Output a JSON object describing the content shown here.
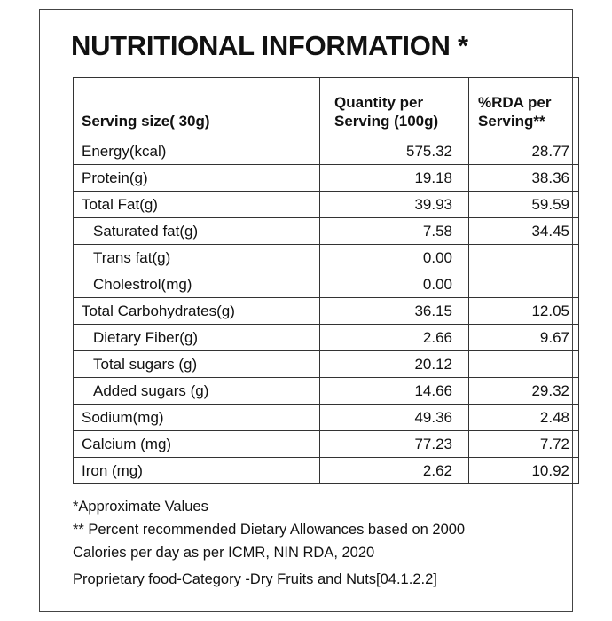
{
  "title": "NUTRITIONAL INFORMATION *",
  "table": {
    "header": [
      "Serving size( 30g)",
      "Quantity per Serving (100g)",
      "%RDA per Serving**"
    ],
    "rows": [
      [
        "Energy(kcal)",
        "575.32",
        "28.77"
      ],
      [
        "Protein(g)",
        "19.18",
        "38.36"
      ],
      [
        "Total Fat(g)",
        "39.93",
        "59.59"
      ],
      [
        "Saturated fat(g)",
        "7.58",
        "34.45"
      ],
      [
        "Trans fat(g)",
        "0.00",
        null
      ],
      [
        "Cholestrol(mg)",
        "0.00",
        null
      ],
      [
        "Total Carbohydrates(g)",
        "36.15",
        "12.05"
      ],
      [
        "Dietary Fiber(g)",
        "2.66",
        "9.67"
      ],
      [
        "Total sugars (g)",
        "20.12",
        null
      ],
      [
        "Added sugars (g)",
        "14.66",
        "29.32"
      ],
      [
        "Sodium(mg)",
        "49.36",
        "2.48"
      ],
      [
        "Calcium (mg)",
        "77.23",
        "7.72"
      ],
      [
        "Iron (mg)",
        "2.62",
        "10.92"
      ]
    ]
  },
  "notes": [
    "*Approximate Values",
    "** Percent recommended Dietary Allowances based on 2000 Calories per day as per ICMR, NIN RDA, 2020",
    "Proprietary food-Category -Dry Fruits and Nuts[04.1.2.2]"
  ]
}
